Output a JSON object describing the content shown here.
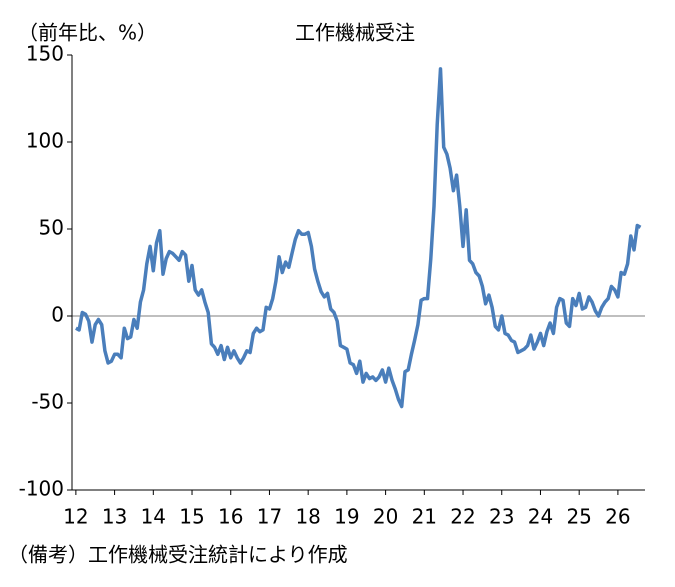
{
  "chart_data": {
    "type": "line",
    "title": "工作機械受注",
    "y_unit_label": "（前年比、%）",
    "note": "（備考）工作機械受注統計により作成",
    "x": [
      12,
      12.083,
      12.167,
      12.25,
      12.333,
      12.417,
      12.5,
      12.583,
      12.667,
      12.75,
      12.833,
      12.917,
      13,
      13.083,
      13.167,
      13.25,
      13.333,
      13.417,
      13.5,
      13.583,
      13.667,
      13.75,
      13.833,
      13.917,
      14,
      14.083,
      14.167,
      14.25,
      14.333,
      14.417,
      14.5,
      14.583,
      14.667,
      14.75,
      14.833,
      14.917,
      15,
      15.083,
      15.167,
      15.25,
      15.333,
      15.417,
      15.5,
      15.583,
      15.667,
      15.75,
      15.833,
      15.917,
      16,
      16.083,
      16.167,
      16.25,
      16.333,
      16.417,
      16.5,
      16.583,
      16.667,
      16.75,
      16.833,
      16.917,
      17,
      17.083,
      17.167,
      17.25,
      17.333,
      17.417,
      17.5,
      17.583,
      17.667,
      17.75,
      17.833,
      17.917,
      18,
      18.083,
      18.167,
      18.25,
      18.333,
      18.417,
      18.5,
      18.583,
      18.667,
      18.75,
      18.833,
      18.917,
      19,
      19.083,
      19.167,
      19.25,
      19.333,
      19.417,
      19.5,
      19.583,
      19.667,
      19.75,
      19.833,
      19.917,
      20,
      20.083,
      20.167,
      20.25,
      20.333,
      20.417,
      20.5,
      20.583,
      20.667,
      20.75,
      20.833,
      20.917,
      21,
      21.083,
      21.167,
      21.25,
      21.333,
      21.417,
      21.5,
      21.583,
      21.667,
      21.75,
      21.833,
      21.917,
      22,
      22.083,
      22.167,
      22.25,
      22.333,
      22.417,
      22.5,
      22.583,
      22.667,
      22.75,
      22.833,
      22.917,
      23,
      23.083,
      23.167,
      23.25,
      23.333,
      23.417,
      23.5,
      23.583,
      23.667,
      23.75,
      23.833,
      23.917,
      24,
      24.083,
      24.167,
      24.25,
      24.333,
      24.417,
      24.5,
      24.583,
      24.667,
      24.75,
      24.833,
      24.917,
      25,
      25.083,
      25.167,
      25.25,
      25.333,
      25.417,
      25.5,
      25.583,
      25.667,
      25.75,
      25.833,
      25.917,
      26,
      26.083,
      26.167,
      26.25,
      26.333,
      26.417,
      26.5,
      26.583
    ],
    "series": [
      {
        "color": "#4a7ebb",
        "values": [
          -7,
          -8,
          2,
          1,
          -3,
          -15,
          -5,
          -2,
          -5,
          -20,
          -27,
          -26,
          -22,
          -22,
          -24,
          -7,
          -13,
          -12,
          -2,
          -7,
          8,
          15,
          30,
          40,
          26,
          42,
          49,
          24,
          33,
          37,
          36,
          34,
          32,
          37,
          35,
          20,
          29,
          15,
          12,
          15,
          8,
          2,
          -16,
          -18,
          -22,
          -17,
          -25,
          -18,
          -24,
          -20,
          -24,
          -27,
          -24,
          -20,
          -21,
          -10,
          -7,
          -9,
          -8,
          5,
          4,
          10,
          20,
          34,
          25,
          31,
          28,
          36,
          44,
          49,
          47,
          47,
          48,
          40,
          27,
          20,
          14,
          11,
          13,
          4,
          2,
          -3,
          -17,
          -18,
          -19,
          -27,
          -28,
          -33,
          -26,
          -38,
          -33,
          -36,
          -35,
          -37,
          -35,
          -31,
          -38,
          -30,
          -37,
          -42,
          -48,
          -52,
          -32,
          -31,
          -22,
          -14,
          -5,
          9,
          10,
          10,
          33,
          63,
          110,
          142,
          97,
          93,
          85,
          72,
          81,
          63,
          40,
          61,
          32,
          30,
          25,
          23,
          17,
          7,
          12,
          5,
          -6,
          -8,
          0,
          -10,
          -11,
          -14,
          -15,
          -21,
          -20,
          -19,
          -17,
          -11,
          -19,
          -15,
          -10,
          -17,
          -9,
          -4,
          -10,
          5,
          10,
          9,
          -4,
          -6,
          10,
          6,
          13,
          4,
          5,
          11,
          8,
          3,
          0,
          5,
          8,
          10,
          17,
          15,
          11,
          25,
          24,
          30,
          46,
          38,
          52,
          51
        ]
      }
    ],
    "xlim": [
      11.9,
      26.7
    ],
    "xticks": [
      12,
      13,
      14,
      15,
      16,
      17,
      18,
      19,
      20,
      21,
      22,
      23,
      24,
      25,
      26
    ],
    "ylim": [
      -100,
      150
    ],
    "yticks": [
      150,
      100,
      50,
      0,
      -50,
      -100
    ]
  }
}
